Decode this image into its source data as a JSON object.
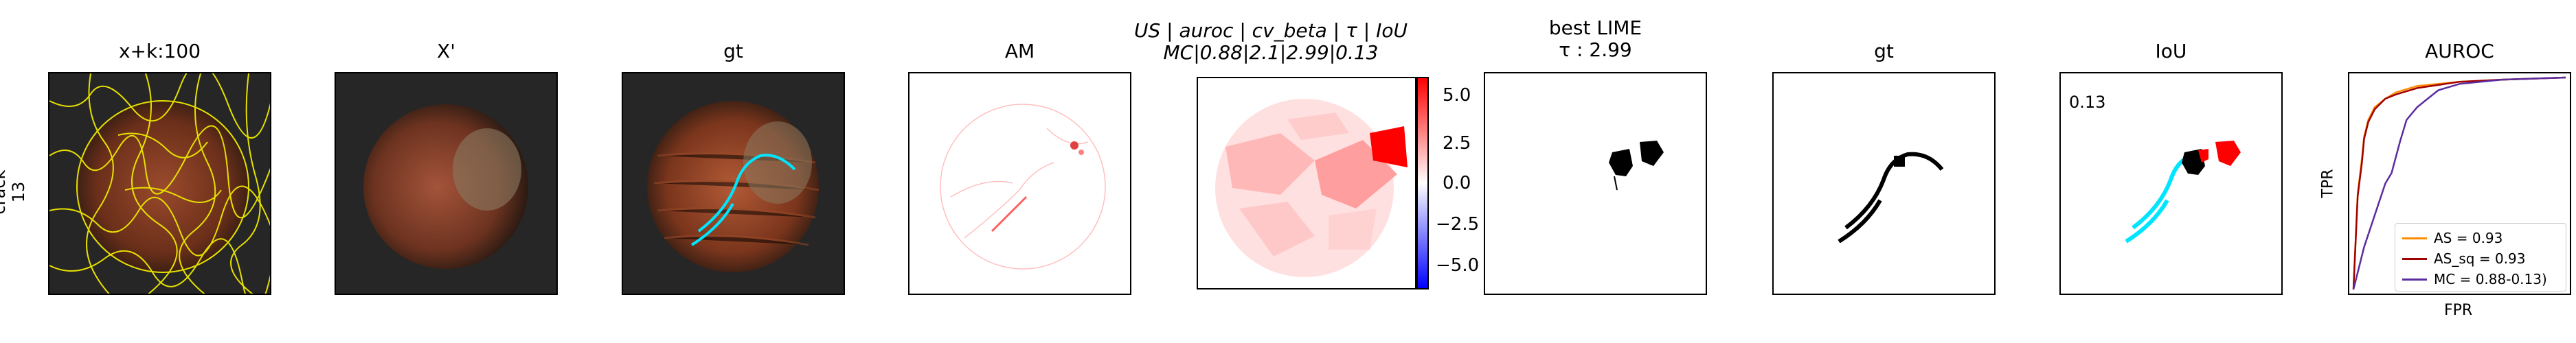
{
  "row_label": [
    "crack",
    "13"
  ],
  "panels": {
    "p1": {
      "title": "x+k:100"
    },
    "p2": {
      "title": "X'"
    },
    "p3": {
      "title": "gt"
    },
    "p4": {
      "title": "AM"
    },
    "p5": {
      "title_line1": "US | auroc | cv_beta | τ | IoU",
      "title_line2": "MC|0.88|2.1|2.99|0.13"
    },
    "p6": {
      "title_line1": "best LIME",
      "title_line2": "τ : 2.99"
    },
    "p7": {
      "title": "gt"
    },
    "p8": {
      "title": "IoU",
      "value": "0.13"
    },
    "p9": {
      "title": "AUROC",
      "xlabel": "FPR",
      "ylabel": "TPR"
    }
  },
  "colorbar": {
    "ticks": [
      "5.0",
      "2.5",
      "0.0",
      "−2.5",
      "−5.0"
    ],
    "colors": {
      "high": "#ff0000",
      "mid": "#ffffff",
      "low": "#0000ff"
    }
  },
  "chart_data": {
    "type": "line",
    "title": "AUROC",
    "xlabel": "FPR",
    "ylabel": "TPR",
    "xlim": [
      0,
      1
    ],
    "ylim": [
      0,
      1
    ],
    "legend_position": "bottom-right",
    "series": [
      {
        "name": "AS = 0.93",
        "color": "#ff8c00",
        "x": [
          0,
          0.02,
          0.04,
          0.05,
          0.07,
          0.1,
          0.15,
          0.2,
          0.3,
          0.5,
          0.7,
          1.0
        ],
        "y": [
          0,
          0.45,
          0.62,
          0.72,
          0.8,
          0.86,
          0.9,
          0.93,
          0.96,
          0.98,
          0.99,
          1.0
        ]
      },
      {
        "name": "AS_sq = 0.93",
        "color": "#a00000",
        "x": [
          0,
          0.02,
          0.04,
          0.05,
          0.07,
          0.1,
          0.15,
          0.2,
          0.3,
          0.5,
          0.7,
          1.0
        ],
        "y": [
          0,
          0.44,
          0.6,
          0.71,
          0.79,
          0.85,
          0.9,
          0.92,
          0.95,
          0.98,
          0.99,
          1.0
        ]
      },
      {
        "name": "MC = 0.88-0.13)",
        "color": "#5a2ca0",
        "x": [
          0,
          0.05,
          0.1,
          0.15,
          0.18,
          0.22,
          0.25,
          0.3,
          0.35,
          0.4,
          0.5,
          0.7,
          1.0
        ],
        "y": [
          0,
          0.2,
          0.35,
          0.5,
          0.55,
          0.7,
          0.8,
          0.86,
          0.9,
          0.94,
          0.97,
          0.99,
          1.0
        ]
      }
    ]
  }
}
